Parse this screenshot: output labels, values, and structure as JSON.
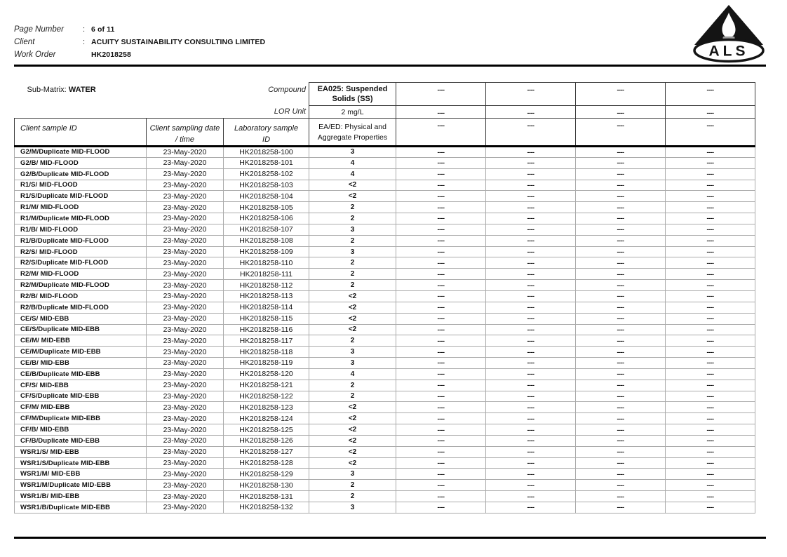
{
  "page_header": {
    "fields": [
      {
        "label": "Page Number",
        "colon": ":",
        "value": "6 of 11"
      },
      {
        "label": "Client",
        "colon": ":",
        "value": "ACUITY SUSTAINABILITY CONSULTING LIMITED"
      },
      {
        "label": "Work Order",
        "colon": "",
        "value": "HK2018258"
      }
    ],
    "logo_text": "ALS"
  },
  "table": {
    "sub_matrix_label": "Sub-Matrix:",
    "sub_matrix_value": "WATER",
    "compound_label": "Compound",
    "lor_unit_label": "LOR Unit",
    "placeholder": "----",
    "analyte": {
      "title_line1": "EA025: Suspended",
      "title_line2": "Solids (SS)",
      "lor_unit": "2 mg/L",
      "group_line1": "EA/ED: Physical and",
      "group_line2": "Aggregate Properties"
    },
    "columns": [
      {
        "line1": "Client sample ID",
        "line2": ""
      },
      {
        "line1": "Client sampling date",
        "line2": "/ time"
      },
      {
        "line1": "Laboratory sample",
        "line2": "ID"
      }
    ],
    "rows": [
      {
        "client_sample_id": "G2/M/Duplicate MID-FLOOD",
        "date": "23-May-2020",
        "lab_id": "HK2018258-100",
        "value": "3"
      },
      {
        "client_sample_id": "G2/B/ MID-FLOOD",
        "date": "23-May-2020",
        "lab_id": "HK2018258-101",
        "value": "4"
      },
      {
        "client_sample_id": "G2/B/Duplicate MID-FLOOD",
        "date": "23-May-2020",
        "lab_id": "HK2018258-102",
        "value": "4"
      },
      {
        "client_sample_id": "R1/S/ MID-FLOOD",
        "date": "23-May-2020",
        "lab_id": "HK2018258-103",
        "value": "<2"
      },
      {
        "client_sample_id": "R1/S/Duplicate MID-FLOOD",
        "date": "23-May-2020",
        "lab_id": "HK2018258-104",
        "value": "<2"
      },
      {
        "client_sample_id": "R1/M/ MID-FLOOD",
        "date": "23-May-2020",
        "lab_id": "HK2018258-105",
        "value": "2"
      },
      {
        "client_sample_id": "R1/M/Duplicate MID-FLOOD",
        "date": "23-May-2020",
        "lab_id": "HK2018258-106",
        "value": "2"
      },
      {
        "client_sample_id": "R1/B/ MID-FLOOD",
        "date": "23-May-2020",
        "lab_id": "HK2018258-107",
        "value": "3"
      },
      {
        "client_sample_id": "R1/B/Duplicate MID-FLOOD",
        "date": "23-May-2020",
        "lab_id": "HK2018258-108",
        "value": "2"
      },
      {
        "client_sample_id": "R2/S/ MID-FLOOD",
        "date": "23-May-2020",
        "lab_id": "HK2018258-109",
        "value": "3"
      },
      {
        "client_sample_id": "R2/S/Duplicate MID-FLOOD",
        "date": "23-May-2020",
        "lab_id": "HK2018258-110",
        "value": "2"
      },
      {
        "client_sample_id": "R2/M/ MID-FLOOD",
        "date": "23-May-2020",
        "lab_id": "HK2018258-111",
        "value": "2"
      },
      {
        "client_sample_id": "R2/M/Duplicate MID-FLOOD",
        "date": "23-May-2020",
        "lab_id": "HK2018258-112",
        "value": "2"
      },
      {
        "client_sample_id": "R2/B/ MID-FLOOD",
        "date": "23-May-2020",
        "lab_id": "HK2018258-113",
        "value": "<2"
      },
      {
        "client_sample_id": "R2/B/Duplicate MID-FLOOD",
        "date": "23-May-2020",
        "lab_id": "HK2018258-114",
        "value": "<2"
      },
      {
        "client_sample_id": "CE/S/ MID-EBB",
        "date": "23-May-2020",
        "lab_id": "HK2018258-115",
        "value": "<2"
      },
      {
        "client_sample_id": "CE/S/Duplicate MID-EBB",
        "date": "23-May-2020",
        "lab_id": "HK2018258-116",
        "value": "<2"
      },
      {
        "client_sample_id": "CE/M/ MID-EBB",
        "date": "23-May-2020",
        "lab_id": "HK2018258-117",
        "value": "2"
      },
      {
        "client_sample_id": "CE/M/Duplicate MID-EBB",
        "date": "23-May-2020",
        "lab_id": "HK2018258-118",
        "value": "3"
      },
      {
        "client_sample_id": "CE/B/ MID-EBB",
        "date": "23-May-2020",
        "lab_id": "HK2018258-119",
        "value": "3"
      },
      {
        "client_sample_id": "CE/B/Duplicate MID-EBB",
        "date": "23-May-2020",
        "lab_id": "HK2018258-120",
        "value": "4"
      },
      {
        "client_sample_id": "CF/S/ MID-EBB",
        "date": "23-May-2020",
        "lab_id": "HK2018258-121",
        "value": "2"
      },
      {
        "client_sample_id": "CF/S/Duplicate MID-EBB",
        "date": "23-May-2020",
        "lab_id": "HK2018258-122",
        "value": "2"
      },
      {
        "client_sample_id": "CF/M/ MID-EBB",
        "date": "23-May-2020",
        "lab_id": "HK2018258-123",
        "value": "<2"
      },
      {
        "client_sample_id": "CF/M/Duplicate MID-EBB",
        "date": "23-May-2020",
        "lab_id": "HK2018258-124",
        "value": "<2"
      },
      {
        "client_sample_id": "CF/B/ MID-EBB",
        "date": "23-May-2020",
        "lab_id": "HK2018258-125",
        "value": "<2"
      },
      {
        "client_sample_id": "CF/B/Duplicate MID-EBB",
        "date": "23-May-2020",
        "lab_id": "HK2018258-126",
        "value": "<2"
      },
      {
        "client_sample_id": "WSR1/S/ MID-EBB",
        "date": "23-May-2020",
        "lab_id": "HK2018258-127",
        "value": "<2"
      },
      {
        "client_sample_id": "WSR1/S/Duplicate MID-EBB",
        "date": "23-May-2020",
        "lab_id": "HK2018258-128",
        "value": "<2"
      },
      {
        "client_sample_id": "WSR1/M/ MID-EBB",
        "date": "23-May-2020",
        "lab_id": "HK2018258-129",
        "value": "3"
      },
      {
        "client_sample_id": "WSR1/M/Duplicate MID-EBB",
        "date": "23-May-2020",
        "lab_id": "HK2018258-130",
        "value": "2"
      },
      {
        "client_sample_id": "WSR1/B/ MID-EBB",
        "date": "23-May-2020",
        "lab_id": "HK2018258-131",
        "value": "2"
      },
      {
        "client_sample_id": "WSR1/B/Duplicate MID-EBB",
        "date": "23-May-2020",
        "lab_id": "HK2018258-132",
        "value": "3"
      }
    ]
  }
}
